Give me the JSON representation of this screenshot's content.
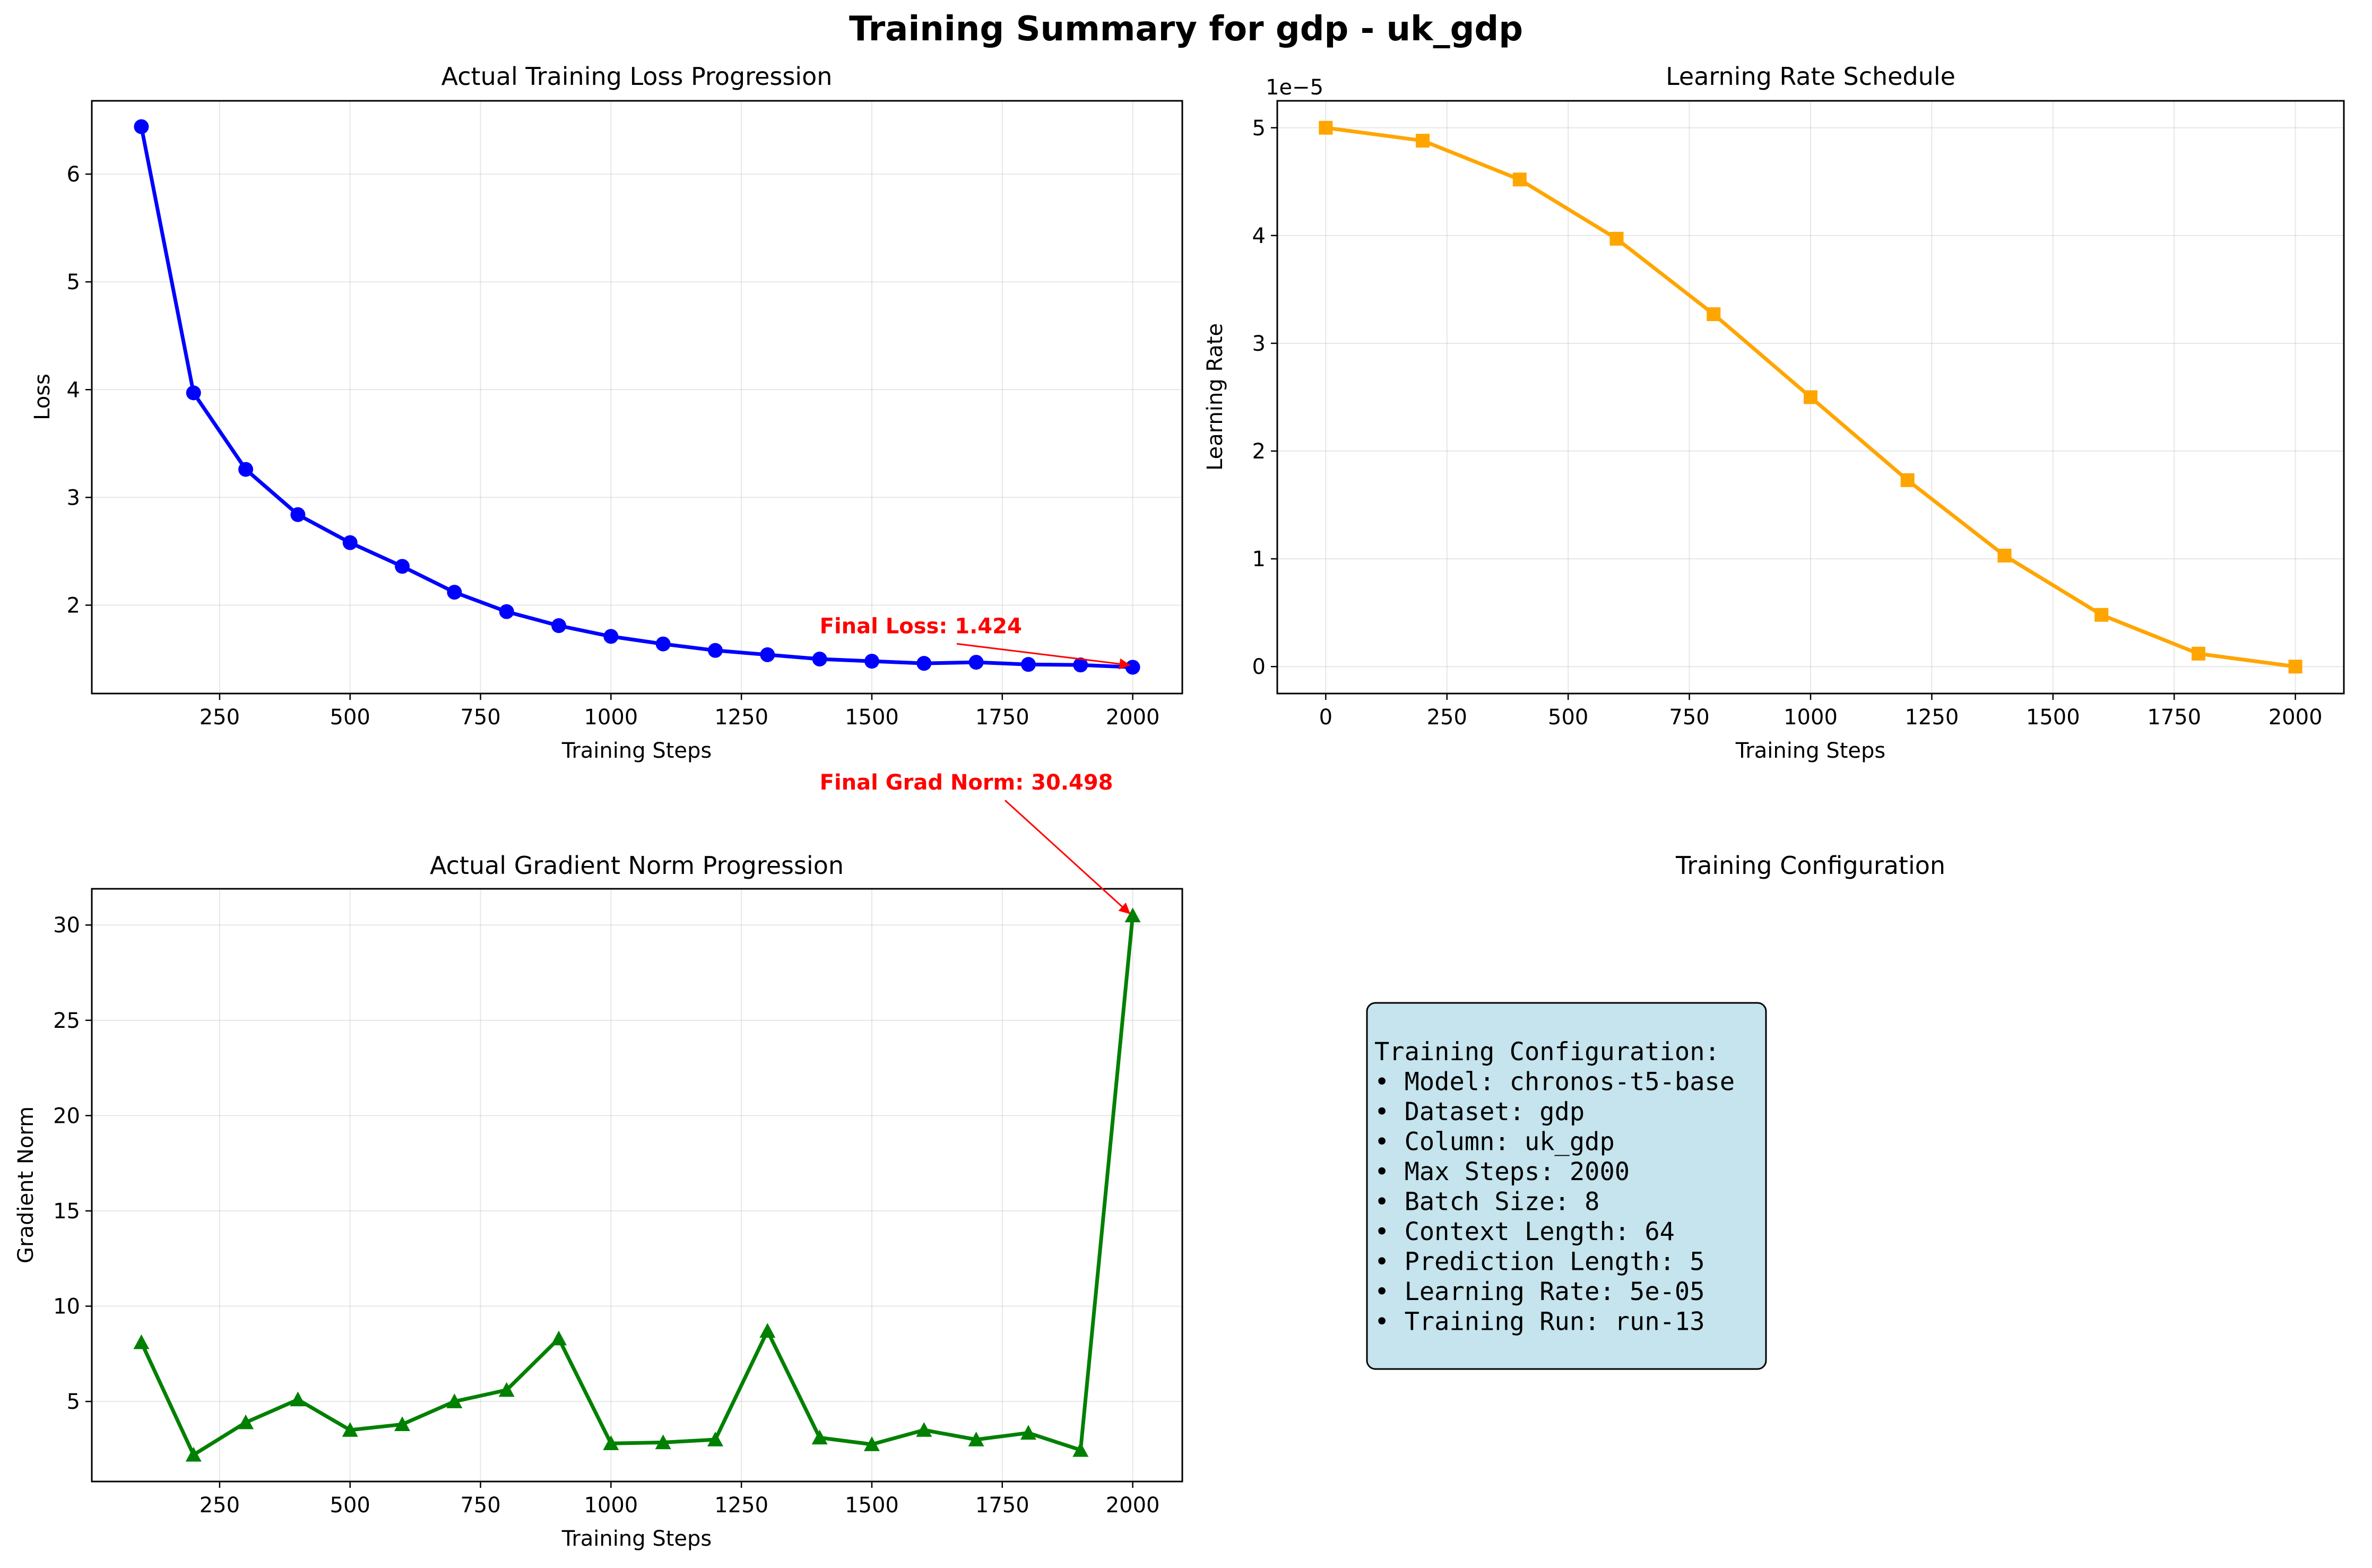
{
  "figure_title": "Training Summary for gdp - uk_gdp",
  "colors": {
    "loss": "#0000ff",
    "lr": "#ffa500",
    "grad": "#008000",
    "annotation": "#ff0000",
    "config_box_fill": "#add8e6",
    "config_box_edge": "#000000"
  },
  "chart_data": [
    {
      "id": "loss",
      "type": "line",
      "title": "Actual Training Loss Progression",
      "xlabel": "Training Steps",
      "ylabel": "Loss",
      "marker": "circle",
      "grid": true,
      "xlim": [
        5,
        2095
      ],
      "ylim": [
        1.18,
        6.68
      ],
      "xticks": [
        250,
        500,
        750,
        1000,
        1250,
        1500,
        1750,
        2000
      ],
      "yticks": [
        2,
        3,
        4,
        5,
        6
      ],
      "x": [
        100,
        200,
        300,
        400,
        500,
        600,
        700,
        800,
        900,
        1000,
        1100,
        1200,
        1300,
        1400,
        1500,
        1600,
        1700,
        1800,
        1900,
        2000
      ],
      "y": [
        6.44,
        3.97,
        3.26,
        2.84,
        2.58,
        2.36,
        2.12,
        1.94,
        1.81,
        1.71,
        1.64,
        1.58,
        1.54,
        1.5,
        1.48,
        1.46,
        1.47,
        1.45,
        1.445,
        1.424
      ],
      "annotation": {
        "text": "Final Loss: 1.424",
        "x": 2000,
        "y": 1.424,
        "text_x": 1400,
        "text_y": 1.74
      }
    },
    {
      "id": "lr",
      "type": "line",
      "title": "Learning Rate Schedule",
      "xlabel": "Training Steps",
      "ylabel": "Learning Rate",
      "offset_label": "1e−5",
      "marker": "square",
      "grid": true,
      "xlim": [
        -100,
        2100
      ],
      "ylim": [
        -0.25,
        5.25
      ],
      "xticks": [
        0,
        250,
        500,
        750,
        1000,
        1250,
        1500,
        1750,
        2000
      ],
      "yticks": [
        0,
        1,
        2,
        3,
        4,
        5
      ],
      "x": [
        0,
        200,
        400,
        600,
        800,
        1000,
        1200,
        1400,
        1600,
        1800,
        2000
      ],
      "y": [
        5.0,
        4.88,
        4.52,
        3.97,
        3.27,
        2.5,
        1.73,
        1.03,
        0.48,
        0.12,
        0.0
      ]
    },
    {
      "id": "grad",
      "type": "line",
      "title": "Actual Gradient Norm Progression",
      "xlabel": "Training Steps",
      "ylabel": "Gradient Norm",
      "marker": "triangle",
      "grid": true,
      "xlim": [
        5,
        2095
      ],
      "ylim": [
        0.8,
        31.9
      ],
      "xticks": [
        250,
        500,
        750,
        1000,
        1250,
        1500,
        1750,
        2000
      ],
      "yticks": [
        5,
        10,
        15,
        20,
        25,
        30
      ],
      "x": [
        100,
        200,
        300,
        400,
        500,
        600,
        700,
        800,
        900,
        1000,
        1100,
        1200,
        1300,
        1400,
        1500,
        1600,
        1700,
        1800,
        1900,
        2000
      ],
      "y": [
        8.1,
        2.2,
        3.9,
        5.1,
        3.5,
        3.8,
        5.0,
        5.6,
        8.3,
        2.8,
        2.85,
        3.0,
        8.7,
        3.1,
        2.75,
        3.5,
        3.0,
        3.35,
        2.45,
        30.498
      ],
      "annotation": {
        "text": "Final Grad Norm: 30.498",
        "x": 2000,
        "y": 30.498,
        "text_x": 1400,
        "text_y": 37.1
      }
    }
  ],
  "config_panel": {
    "title": "Training Configuration",
    "lines": [
      "Training Configuration:",
      "• Model: chronos-t5-base",
      "• Dataset: gdp",
      "• Column: uk_gdp",
      "• Max Steps: 2000",
      "• Batch Size: 8",
      "• Context Length: 64",
      "• Prediction Length: 5",
      "• Learning Rate: 5e-05",
      "• Training Run: run-13"
    ]
  }
}
